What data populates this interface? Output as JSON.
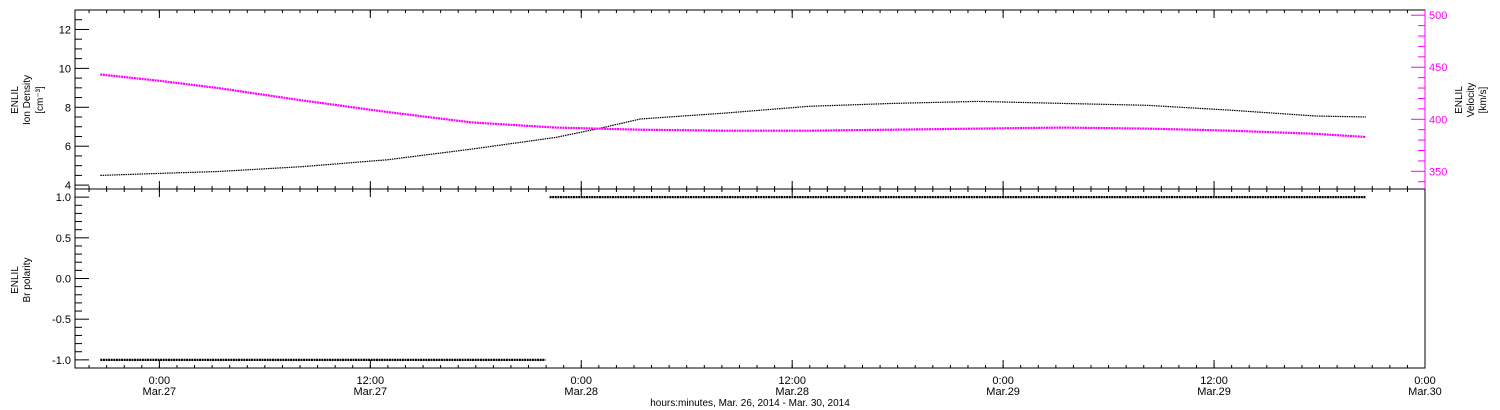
{
  "chart_data": [
    {
      "type": "line",
      "panel": "top",
      "ylabel_left": [
        "ENLIL",
        "Ion Density",
        "[cm⁻³]"
      ],
      "ylabel_right": [
        "ENLIL",
        "Velocity",
        "[km/s]"
      ],
      "y_left_ticks": [
        "4",
        "6",
        "8",
        "10",
        "12"
      ],
      "y_right_ticks": [
        "350",
        "400",
        "450",
        "500"
      ],
      "ylim_left": [
        3.8,
        13
      ],
      "ylim_right": [
        333,
        505
      ],
      "colors": {
        "density": "#000000",
        "velocity": "#ff00ff"
      },
      "series": [
        {
          "key": "density",
          "axis": "left",
          "x": [
            -0.14,
            0.0,
            0.14,
            0.34,
            0.54,
            0.74,
            0.94,
            1.04,
            1.14,
            1.34,
            1.54,
            1.74,
            1.94,
            2.14,
            2.34,
            2.54,
            2.64,
            2.74,
            2.86
          ],
          "values": [
            4.5,
            4.6,
            4.7,
            4.95,
            5.3,
            5.85,
            6.45,
            6.9,
            7.4,
            7.7,
            8.05,
            8.2,
            8.3,
            8.2,
            8.1,
            7.85,
            7.7,
            7.55,
            7.5
          ]
        },
        {
          "key": "velocity",
          "axis": "right",
          "x": [
            -0.14,
            0.0,
            0.14,
            0.34,
            0.54,
            0.74,
            0.94,
            1.14,
            1.34,
            1.54,
            1.74,
            1.94,
            2.14,
            2.34,
            2.54,
            2.74,
            2.86
          ],
          "values": [
            443,
            437,
            430,
            418,
            407,
            397,
            392,
            390,
            389,
            389,
            390,
            391,
            392,
            391,
            389,
            386,
            383
          ]
        }
      ]
    },
    {
      "type": "line",
      "panel": "bottom",
      "ylabel_left": [
        "ENLIL",
        "Br polarity"
      ],
      "y_ticks": [
        "-1.0",
        "-0.5",
        "0.0",
        "0.5",
        "1.0"
      ],
      "ylim": [
        -1.1,
        1.1
      ],
      "series": [
        {
          "key": "polarity",
          "x": [
            -0.14,
            0.915
          ],
          "values": [
            -1.0,
            -1.0
          ]
        },
        {
          "key": "polarity",
          "x": [
            0.925,
            2.86
          ],
          "values": [
            1.0,
            1.0
          ]
        }
      ]
    }
  ],
  "x_ticks": [
    {
      "x": 0.0,
      "time": "0:00",
      "date": "Mar.27"
    },
    {
      "x": 0.5,
      "time": "12:00",
      "date": "Mar.27"
    },
    {
      "x": 1.0,
      "time": "0:00",
      "date": "Mar.28"
    },
    {
      "x": 1.5,
      "time": "12:00",
      "date": "Mar.28"
    },
    {
      "x": 2.0,
      "time": "0:00",
      "date": "Mar.29"
    },
    {
      "x": 2.5,
      "time": "12:00",
      "date": "Mar.29"
    },
    {
      "x": 3.0,
      "time": "0:00",
      "date": "Mar.30"
    }
  ],
  "xlim": [
    -0.2,
    3.0
  ],
  "xlabel": "hours:minutes, Mar. 26, 2014 - Mar. 30, 2014"
}
